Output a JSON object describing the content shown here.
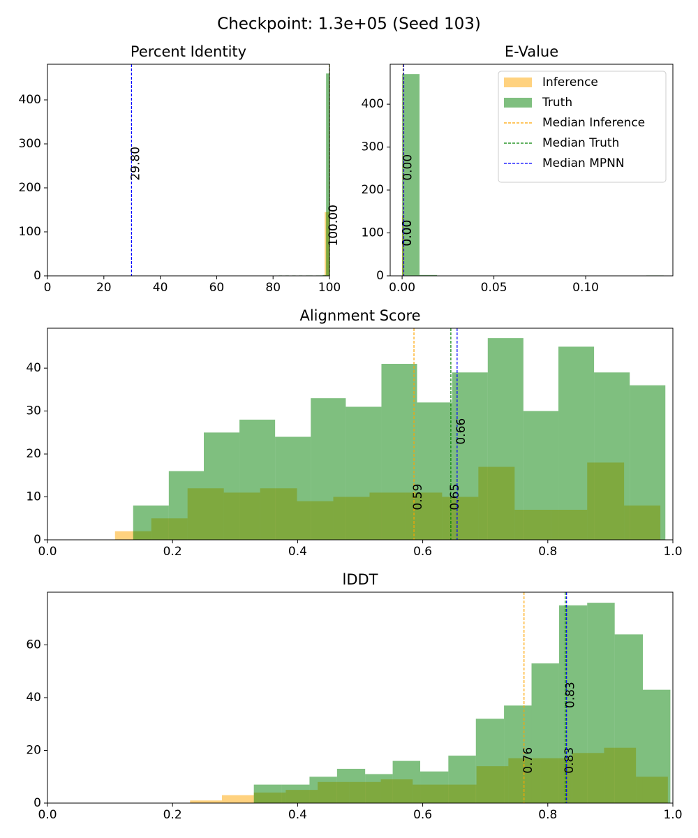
{
  "title": "Checkpoint: 1.3e+05 (Seed 103)",
  "chart_data": [
    {
      "type": "histogram",
      "title": "Percent Identity",
      "alpha": 0.5,
      "xlim": [
        0,
        100
      ],
      "ylim": [
        0,
        481
      ],
      "xticks": [
        0,
        20,
        40,
        60,
        80,
        100
      ],
      "yticks": [
        0,
        100,
        200,
        300,
        400
      ],
      "series": [
        {
          "color": "#ffa500",
          "bins": [
            98.3,
            100
          ],
          "values": [
            145
          ]
        },
        {
          "color": "#008000",
          "bins": [
            82,
            83.2,
            84.4,
            85.6,
            86.8,
            88,
            89.2,
            90.4,
            91.6,
            92.8,
            94,
            95.2,
            96.4,
            97.6,
            98.8,
            100
          ],
          "values": [
            1,
            0,
            1,
            0,
            1,
            0,
            1,
            0,
            1,
            1,
            0,
            1,
            1,
            2,
            460
          ]
        }
      ],
      "medians": [
        {
          "color": "#ffa500",
          "value": 100,
          "label": "100.00"
        },
        {
          "color": "#008000",
          "value": 100,
          "label": "100.00"
        },
        {
          "color": "#0000ff",
          "value": 29.8,
          "label": "29.80"
        }
      ]
    },
    {
      "type": "histogram",
      "title": "E-Value",
      "alpha": 0.5,
      "legend": "upper right",
      "xlim": [
        -0.0065,
        0.1475
      ],
      "ylim": [
        0,
        493
      ],
      "xticks": [
        {
          "value": 0,
          "label": "0.00"
        },
        {
          "value": 0.05,
          "label": "0.05"
        },
        {
          "value": 0.1,
          "label": "0.10"
        }
      ],
      "yticks": [
        0,
        100,
        200,
        300,
        400
      ],
      "series": [
        {
          "name": "Inference",
          "color": "#ffa500",
          "bins": [
            0,
            0.001
          ],
          "values": [
            140
          ]
        },
        {
          "name": "Truth",
          "color": "#008000",
          "bins": [
            0,
            0.0095,
            0.019,
            0.0285,
            0.038,
            0.0475,
            0.057,
            0.0665,
            0.076,
            0.0855,
            0.095,
            0.1045,
            0.114,
            0.1235,
            0.133,
            0.1425
          ],
          "values": [
            470,
            2,
            0,
            0,
            0,
            0,
            0,
            0,
            0,
            0,
            0,
            0,
            0,
            0,
            1
          ]
        }
      ],
      "medians": [
        {
          "name": "Median Inference",
          "color": "#ffa500",
          "value": 0.0005,
          "label": "0.00"
        },
        {
          "name": "Median Truth",
          "color": "#008000",
          "value": 0.0008,
          "label": "0.00"
        },
        {
          "name": "Median MPNN",
          "color": "#0000ff",
          "value": 0.0009,
          "label": "0.00"
        }
      ]
    },
    {
      "type": "histogram",
      "title": "Alignment Score",
      "alpha": 0.5,
      "xlim": [
        0,
        1
      ],
      "ylim": [
        0,
        49.3
      ],
      "xticks": [
        {
          "value": 0,
          "label": "0.0"
        },
        {
          "value": 0.2,
          "label": "0.2"
        },
        {
          "value": 0.4,
          "label": "0.4"
        },
        {
          "value": 0.6,
          "label": "0.6"
        },
        {
          "value": 0.8,
          "label": "0.8"
        },
        {
          "value": 1,
          "label": "1.0"
        }
      ],
      "yticks": [
        0,
        10,
        20,
        30,
        40
      ],
      "series": [
        {
          "color": "#ffa500",
          "bins": [
            0.108,
            0.166,
            0.224,
            0.282,
            0.34,
            0.399,
            0.457,
            0.515,
            0.573,
            0.631,
            0.689,
            0.747,
            0.805,
            0.863,
            0.922,
            0.98
          ],
          "values": [
            2,
            5,
            12,
            11,
            12,
            9,
            10,
            11,
            11,
            10,
            17,
            7,
            7,
            18,
            8
          ]
        },
        {
          "color": "#008000",
          "bins": [
            0.137,
            0.194,
            0.25,
            0.307,
            0.364,
            0.421,
            0.477,
            0.534,
            0.591,
            0.647,
            0.704,
            0.761,
            0.817,
            0.874,
            0.931,
            0.988
          ],
          "values": [
            8,
            16,
            25,
            28,
            24,
            33,
            31,
            41,
            32,
            39,
            47,
            30,
            45,
            39,
            36
          ]
        }
      ],
      "medians": [
        {
          "color": "#ffa500",
          "value": 0.586,
          "label": "0.59"
        },
        {
          "color": "#008000",
          "value": 0.645,
          "label": "0.65"
        },
        {
          "color": "#0000ff",
          "value": 0.655,
          "label": "0.66"
        }
      ]
    },
    {
      "type": "histogram",
      "title": "lDDT",
      "alpha": 0.5,
      "xlim": [
        0,
        1
      ],
      "ylim": [
        0,
        80
      ],
      "xticks": [
        {
          "value": 0,
          "label": "0.0"
        },
        {
          "value": 0.2,
          "label": "0.2"
        },
        {
          "value": 0.4,
          "label": "0.4"
        },
        {
          "value": 0.6,
          "label": "0.6"
        },
        {
          "value": 0.8,
          "label": "0.8"
        },
        {
          "value": 1,
          "label": "1.0"
        }
      ],
      "yticks": [
        0,
        20,
        40,
        60
      ],
      "series": [
        {
          "color": "#ffa500",
          "bins": [
            0.228,
            0.279,
            0.33,
            0.381,
            0.432,
            0.483,
            0.533,
            0.584,
            0.635,
            0.686,
            0.737,
            0.788,
            0.839,
            0.89,
            0.941,
            0.992
          ],
          "values": [
            1,
            3,
            4,
            5,
            8,
            8,
            9,
            7,
            7,
            14,
            17,
            17,
            19,
            21,
            10
          ]
        },
        {
          "color": "#008000",
          "bins": [
            0.33,
            0.374,
            0.419,
            0.463,
            0.508,
            0.552,
            0.596,
            0.641,
            0.685,
            0.73,
            0.774,
            0.818,
            0.863,
            0.907,
            0.952,
            0.996
          ],
          "values": [
            7,
            7,
            10,
            13,
            11,
            16,
            12,
            18,
            32,
            37,
            53,
            75,
            76,
            64,
            43
          ]
        }
      ],
      "medians": [
        {
          "color": "#ffa500",
          "value": 0.762,
          "label": "0.76"
        },
        {
          "color": "#008000",
          "value": 0.828,
          "label": "0.83"
        },
        {
          "color": "#0000ff",
          "value": 0.83,
          "label": "0.83"
        }
      ]
    }
  ]
}
